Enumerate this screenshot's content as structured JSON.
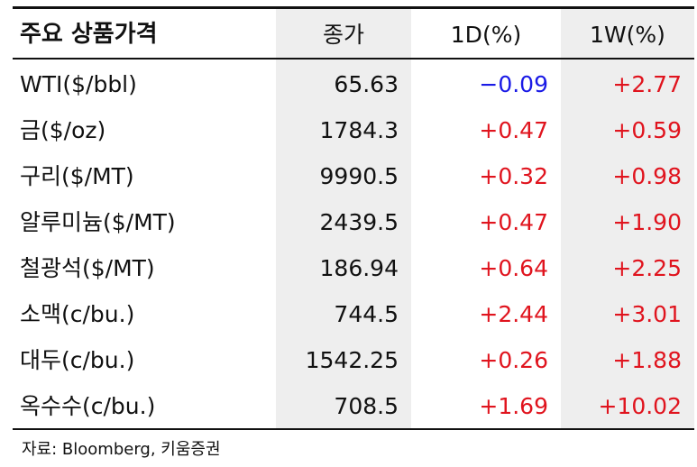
{
  "header": {
    "name": "주요 상품가격",
    "close": "종가",
    "d1": "1D(%)",
    "w1": "1W(%)"
  },
  "rows": [
    {
      "name": "WTI($/bbl)",
      "close": "65.63",
      "d1": "−0.09",
      "w1": "+2.77"
    },
    {
      "name": "금($/oz)",
      "close": "1784.3",
      "d1": "+0.47",
      "w1": "+0.59"
    },
    {
      "name": "구리($/MT)",
      "close": "9990.5",
      "d1": "+0.32",
      "w1": "+0.98"
    },
    {
      "name": "알루미늄($/MT)",
      "close": "2439.5",
      "d1": "+0.47",
      "w1": "+1.90"
    },
    {
      "name": "철광석($/MT)",
      "close": "186.94",
      "d1": "+0.64",
      "w1": "+2.25"
    },
    {
      "name": "소맥(c/bu.)",
      "close": "744.5",
      "d1": "+2.44",
      "w1": "+3.01"
    },
    {
      "name": "대두(c/bu.)",
      "close": "1542.25",
      "d1": "+0.26",
      "w1": "+1.88"
    },
    {
      "name": "옥수수(c/bu.)",
      "close": "708.5",
      "d1": "+1.69",
      "w1": "+10.02"
    }
  ],
  "colors": {
    "positive": "#e0141e",
    "negative": "#1a1ae6",
    "band": "#eeeeee"
  },
  "source": "자료: Bloomberg, 키움증권"
}
